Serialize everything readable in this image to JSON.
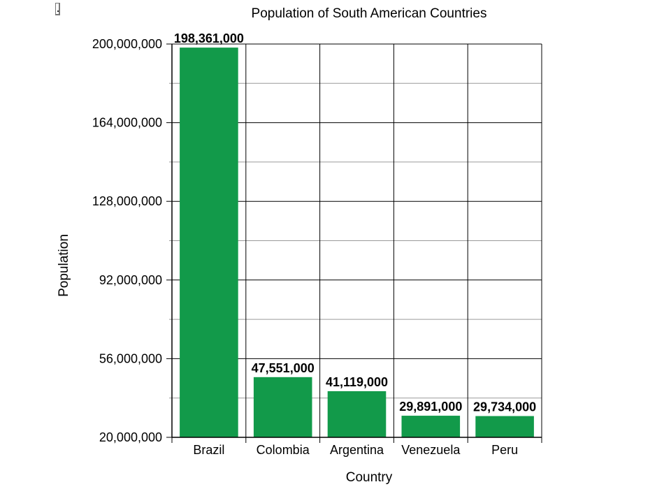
{
  "chart_data": {
    "type": "bar",
    "title": "Population of South American Countries",
    "xlabel": "Country",
    "ylabel": "Population",
    "categories": [
      "Brazil",
      "Colombia",
      "Argentina",
      "Venezuela",
      "Peru"
    ],
    "values": [
      198361000,
      47551000,
      41119000,
      29891000,
      29734000
    ],
    "data_labels": [
      "198,361,000",
      "47,551,000",
      "41,119,000",
      "29,891,000",
      "29,734,000"
    ],
    "ylim": [
      20000000,
      200000000
    ],
    "yticks": [
      20000000,
      56000000,
      92000000,
      128000000,
      164000000,
      200000000
    ],
    "ytick_labels": [
      "20,000,000",
      "56,000,000",
      "92,000,000",
      "128,000,000",
      "164,000,000",
      "200,000,000"
    ],
    "grid": true,
    "colors": {
      "bar": "#129a4a",
      "major_grid": "#000000",
      "minor_grid": "#9a9a9a"
    }
  }
}
